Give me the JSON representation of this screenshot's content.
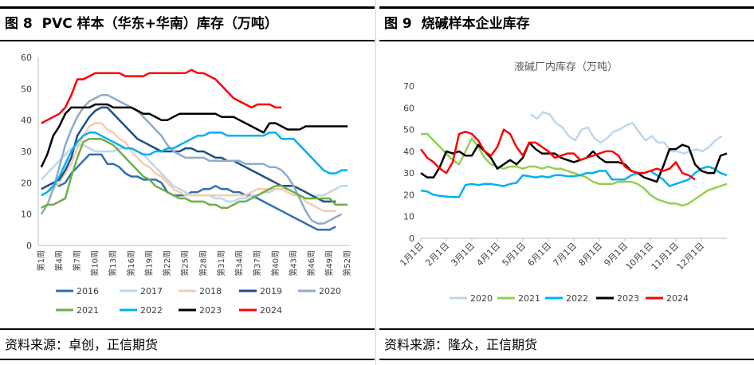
{
  "left": {
    "fig_number": "图 8",
    "fig_title": "PVC 样本（华东+华南）库存（万吨）",
    "source": "资料来源：卓创，正信期货"
  },
  "right": {
    "fig_number": "图 9",
    "fig_title": "烧碱样本企业库存",
    "source": "资料来源：隆众，正信期货"
  },
  "chart_data": [
    {
      "type": "line",
      "title": "",
      "xlabel": "",
      "ylabel": "",
      "ylim": [
        0,
        60
      ],
      "yticks": [
        0,
        10,
        20,
        30,
        40,
        50,
        60
      ],
      "x_count": 52,
      "x_tick_labels": [
        "第1周",
        "第4周",
        "第7周",
        "第10周",
        "第13周",
        "第16周",
        "第19周",
        "第22周",
        "第25周",
        "第28周",
        "第31周",
        "第34周",
        "第37周",
        "第40周",
        "第43周",
        "第46周",
        "第49周",
        "第52周"
      ],
      "legend_position": "bottom",
      "series": [
        {
          "name": "2016",
          "color": "#2e6fb4",
          "values": [
            18,
            19,
            20,
            19,
            20,
            23,
            25,
            27,
            29,
            29,
            29,
            26,
            26,
            25,
            23,
            22,
            22,
            21,
            21,
            21,
            20,
            17,
            16,
            16,
            16,
            17,
            17,
            18,
            18,
            19,
            18,
            18,
            17,
            17,
            16,
            16,
            15,
            14,
            13,
            12,
            11,
            10,
            9,
            8,
            7,
            6,
            5,
            5,
            5,
            6,
            null,
            null
          ]
        },
        {
          "name": "2017",
          "color": "#bdd7ee",
          "values": [
            21,
            23,
            25,
            27,
            29,
            31,
            32,
            32,
            31,
            30,
            30,
            30,
            30,
            31,
            31,
            31,
            30,
            29,
            27,
            25,
            23,
            21,
            19,
            18,
            17,
            16,
            16,
            16,
            16,
            15,
            15,
            14,
            14,
            15,
            15,
            16,
            16,
            17,
            17,
            18,
            18,
            18,
            17,
            16,
            15,
            15,
            16,
            16,
            17,
            18,
            19,
            19
          ]
        },
        {
          "name": "2018",
          "color": "#f8cbad",
          "values": [
            16,
            17,
            18,
            20,
            23,
            26,
            31,
            35,
            38,
            39,
            39,
            37,
            36,
            34,
            33,
            30,
            28,
            26,
            25,
            23,
            22,
            20,
            18,
            17,
            16,
            16,
            16,
            16,
            16,
            16,
            16,
            16,
            16,
            16,
            16,
            17,
            18,
            18,
            18,
            18,
            18,
            17,
            16,
            16,
            14,
            13,
            12,
            11,
            11,
            11,
            null,
            null
          ]
        },
        {
          "name": "2019",
          "color": "#1f4e89",
          "values": [
            18,
            19,
            20,
            21,
            24,
            28,
            35,
            38,
            41,
            43,
            44,
            44,
            42,
            40,
            38,
            36,
            34,
            33,
            32,
            31,
            30,
            30,
            30,
            30,
            31,
            31,
            30,
            30,
            29,
            28,
            28,
            27,
            27,
            26,
            25,
            24,
            23,
            22,
            21,
            20,
            19,
            19,
            19,
            18,
            17,
            16,
            15,
            14,
            14,
            14,
            null,
            null
          ]
        },
        {
          "name": "2020",
          "color": "#8eabc9",
          "values": [
            10,
            13,
            18,
            25,
            32,
            37,
            41,
            44,
            46,
            47,
            48,
            48,
            47,
            46,
            45,
            44,
            43,
            41,
            39,
            37,
            35,
            32,
            30,
            29,
            28,
            28,
            28,
            28,
            27,
            27,
            27,
            27,
            27,
            27,
            26,
            26,
            26,
            26,
            25,
            25,
            24,
            22,
            19,
            15,
            11,
            8,
            7,
            7,
            8,
            9,
            10,
            null
          ]
        },
        {
          "name": "2021",
          "color": "#70ad47",
          "values": [
            12,
            13,
            13,
            14,
            15,
            22,
            28,
            33,
            34,
            34,
            34,
            33,
            32,
            30,
            28,
            26,
            24,
            22,
            21,
            19,
            18,
            17,
            16,
            15,
            15,
            14,
            14,
            14,
            13,
            13,
            12,
            12,
            13,
            14,
            14,
            15,
            16,
            17,
            18,
            19,
            19,
            18,
            17,
            16,
            15,
            15,
            15,
            15,
            15,
            13,
            13,
            13
          ]
        },
        {
          "name": "2022",
          "color": "#00b0f0",
          "values": [
            16,
            17,
            19,
            22,
            26,
            30,
            33,
            35,
            36,
            36,
            35,
            34,
            33,
            32,
            31,
            31,
            30,
            29,
            29,
            30,
            30,
            31,
            31,
            32,
            33,
            34,
            35,
            35,
            36,
            36,
            36,
            35,
            35,
            35,
            35,
            35,
            35,
            35,
            36,
            36,
            34,
            34,
            34,
            32,
            30,
            28,
            26,
            24,
            23,
            23,
            24,
            24
          ]
        },
        {
          "name": "2023",
          "color": "#000000",
          "values": [
            25,
            29,
            35,
            38,
            42,
            44,
            44,
            44,
            44,
            45,
            45,
            45,
            44,
            44,
            44,
            44,
            43,
            42,
            42,
            41,
            40,
            40,
            41,
            42,
            42,
            42,
            42,
            42,
            42,
            42,
            41,
            41,
            41,
            40,
            39,
            38,
            37,
            36,
            39,
            39,
            38,
            37,
            37,
            37,
            38,
            38,
            38,
            38,
            38,
            38,
            38,
            38
          ]
        },
        {
          "name": "2024",
          "color": "#ff0000",
          "values": [
            39,
            40,
            41,
            42,
            44,
            48,
            53,
            53,
            54,
            55,
            55,
            55,
            55,
            55,
            54,
            54,
            54,
            54,
            55,
            55,
            55,
            55,
            55,
            55,
            55,
            56,
            55,
            55,
            54,
            53,
            51,
            49,
            47,
            46,
            45,
            44,
            45,
            45,
            45,
            44,
            44,
            null,
            null,
            null,
            null,
            null,
            null,
            null,
            null,
            null,
            null,
            null
          ]
        }
      ]
    },
    {
      "type": "line",
      "title": "液碱厂内库存（万吨）",
      "xlabel": "",
      "ylabel": "",
      "ylim": [
        0,
        70
      ],
      "yticks": [
        0,
        10,
        20,
        30,
        40,
        50,
        60,
        70
      ],
      "x_range_months": [
        1,
        13
      ],
      "x_tick_labels": [
        "1月1日",
        "2月1日",
        "3月1日",
        "4月1日",
        "5月1日",
        "6月1日",
        "7月1日",
        "8月1日",
        "9月1日",
        "10月1日",
        "11月1日",
        "12月1日"
      ],
      "legend_position": "bottom",
      "series": [
        {
          "name": "2020",
          "color": "#bdd7ee",
          "x": [
            5.3,
            5.55,
            5.8,
            6.05,
            6.3,
            6.55,
            6.8,
            7.05,
            7.3,
            7.55,
            7.8,
            8.05,
            8.3,
            8.55,
            8.8,
            9.05,
            9.3,
            9.55,
            9.8,
            10.05,
            10.3,
            10.55,
            10.8,
            11.05,
            11.3,
            11.55,
            11.8,
            12.05,
            12.3,
            12.55,
            12.8
          ],
          "y": [
            57,
            55,
            58,
            57,
            53,
            51,
            47,
            45,
            50,
            51,
            46,
            44,
            46,
            49,
            50,
            52,
            53,
            49,
            45,
            47,
            44,
            44,
            40,
            40,
            39,
            40,
            41,
            40,
            42,
            45,
            47
          ]
        },
        {
          "name": "2021",
          "color": "#92d050",
          "x": [
            1.0,
            1.25,
            1.5,
            1.75,
            2.0,
            2.25,
            2.5,
            2.75,
            3.0,
            3.25,
            3.5,
            3.75,
            4.0,
            4.25,
            4.5,
            4.75,
            5.0,
            5.25,
            5.5,
            5.75,
            6.0,
            6.25,
            6.5,
            6.75,
            7.0,
            7.25,
            7.5,
            7.75,
            8.0,
            8.25,
            8.5,
            8.75,
            9.0,
            9.25,
            9.5,
            9.75,
            10.0,
            10.25,
            10.5,
            10.75,
            11.0,
            11.25,
            11.5,
            11.75,
            12.0,
            12.25,
            12.5,
            12.75,
            13.0
          ],
          "y": [
            48,
            48,
            45,
            42,
            39,
            36,
            34,
            40,
            46,
            42,
            37,
            34,
            33,
            32,
            33,
            33,
            32,
            33,
            33,
            32,
            33,
            32,
            32,
            31,
            30,
            29,
            28,
            26,
            25,
            25,
            25,
            26,
            26,
            26,
            25,
            23,
            20,
            18,
            17,
            16,
            16,
            15,
            16,
            18,
            20,
            22,
            23,
            24,
            25
          ]
        },
        {
          "name": "2022",
          "color": "#00b0f0",
          "x": [
            1.0,
            1.25,
            1.5,
            1.75,
            2.0,
            2.25,
            2.5,
            2.75,
            3.0,
            3.25,
            3.5,
            3.75,
            4.0,
            4.25,
            4.5,
            4.75,
            5.0,
            5.25,
            5.5,
            5.75,
            6.0,
            6.25,
            6.5,
            6.75,
            7.0,
            7.25,
            7.5,
            7.75,
            8.0,
            8.25,
            8.5,
            8.75,
            9.0,
            9.25,
            9.5,
            9.75,
            10.0,
            10.25,
            10.5,
            10.75,
            11.0,
            11.25,
            11.5,
            11.75,
            12.0,
            12.25,
            12.5,
            12.75,
            13.0
          ],
          "y": [
            22,
            21.5,
            20,
            19.5,
            19.2,
            19,
            19,
            24.5,
            25,
            24.5,
            25,
            25,
            24.5,
            24,
            25,
            25.5,
            29,
            28.5,
            28,
            28.5,
            28,
            29,
            29,
            28.5,
            28.5,
            29,
            30,
            30,
            31,
            31,
            27,
            27,
            27,
            29,
            30,
            30,
            31,
            29,
            27,
            24,
            25,
            26,
            27,
            30,
            32,
            33,
            32,
            30,
            29
          ]
        },
        {
          "name": "2023",
          "color": "#000000",
          "x": [
            1.0,
            1.25,
            1.5,
            1.75,
            2.0,
            2.25,
            2.5,
            2.75,
            3.0,
            3.25,
            3.5,
            3.75,
            4.0,
            4.25,
            4.5,
            4.75,
            5.0,
            5.25,
            5.5,
            5.75,
            6.0,
            6.25,
            6.5,
            6.75,
            7.0,
            7.25,
            7.5,
            7.75,
            8.0,
            8.25,
            8.5,
            8.75,
            9.0,
            9.25,
            9.5,
            9.75,
            10.0,
            10.25,
            10.5,
            10.75,
            11.0,
            11.25,
            11.5,
            11.75,
            12.0,
            12.25,
            12.5,
            12.75,
            13.0
          ],
          "y": [
            30,
            28,
            28,
            33,
            40,
            39,
            40,
            38,
            38,
            43,
            40,
            37,
            32,
            34,
            36,
            34,
            37,
            44,
            41,
            39,
            39,
            39,
            37,
            36,
            35,
            36,
            37,
            40,
            37,
            35,
            35,
            35,
            34,
            31,
            30,
            28,
            27,
            26,
            33,
            41,
            41,
            43,
            42,
            34,
            31,
            30,
            30,
            38,
            39
          ]
        },
        {
          "name": "2024",
          "color": "#ff0000",
          "x": [
            1.0,
            1.25,
            1.5,
            1.75,
            2.0,
            2.25,
            2.5,
            2.75,
            3.0,
            3.25,
            3.5,
            3.75,
            4.0,
            4.25,
            4.5,
            4.75,
            5.0,
            5.25,
            5.5,
            5.75,
            6.0,
            6.25,
            6.5,
            6.75,
            7.0,
            7.25,
            7.5,
            7.75,
            8.0,
            8.25,
            8.5,
            8.75,
            9.0,
            9.25,
            9.5,
            9.75,
            10.0,
            10.25,
            10.5,
            10.75,
            11.0,
            11.25,
            11.5,
            11.75
          ],
          "y": [
            41,
            37,
            35,
            32,
            30,
            35,
            48,
            49,
            48,
            45,
            40,
            38,
            42,
            50,
            48,
            42,
            38,
            44,
            44,
            42,
            40,
            37,
            38,
            39,
            39,
            36,
            37,
            38,
            39,
            40,
            40,
            38,
            33,
            31,
            30,
            30,
            31,
            32,
            31,
            32,
            35,
            30,
            29,
            27
          ]
        }
      ]
    }
  ]
}
